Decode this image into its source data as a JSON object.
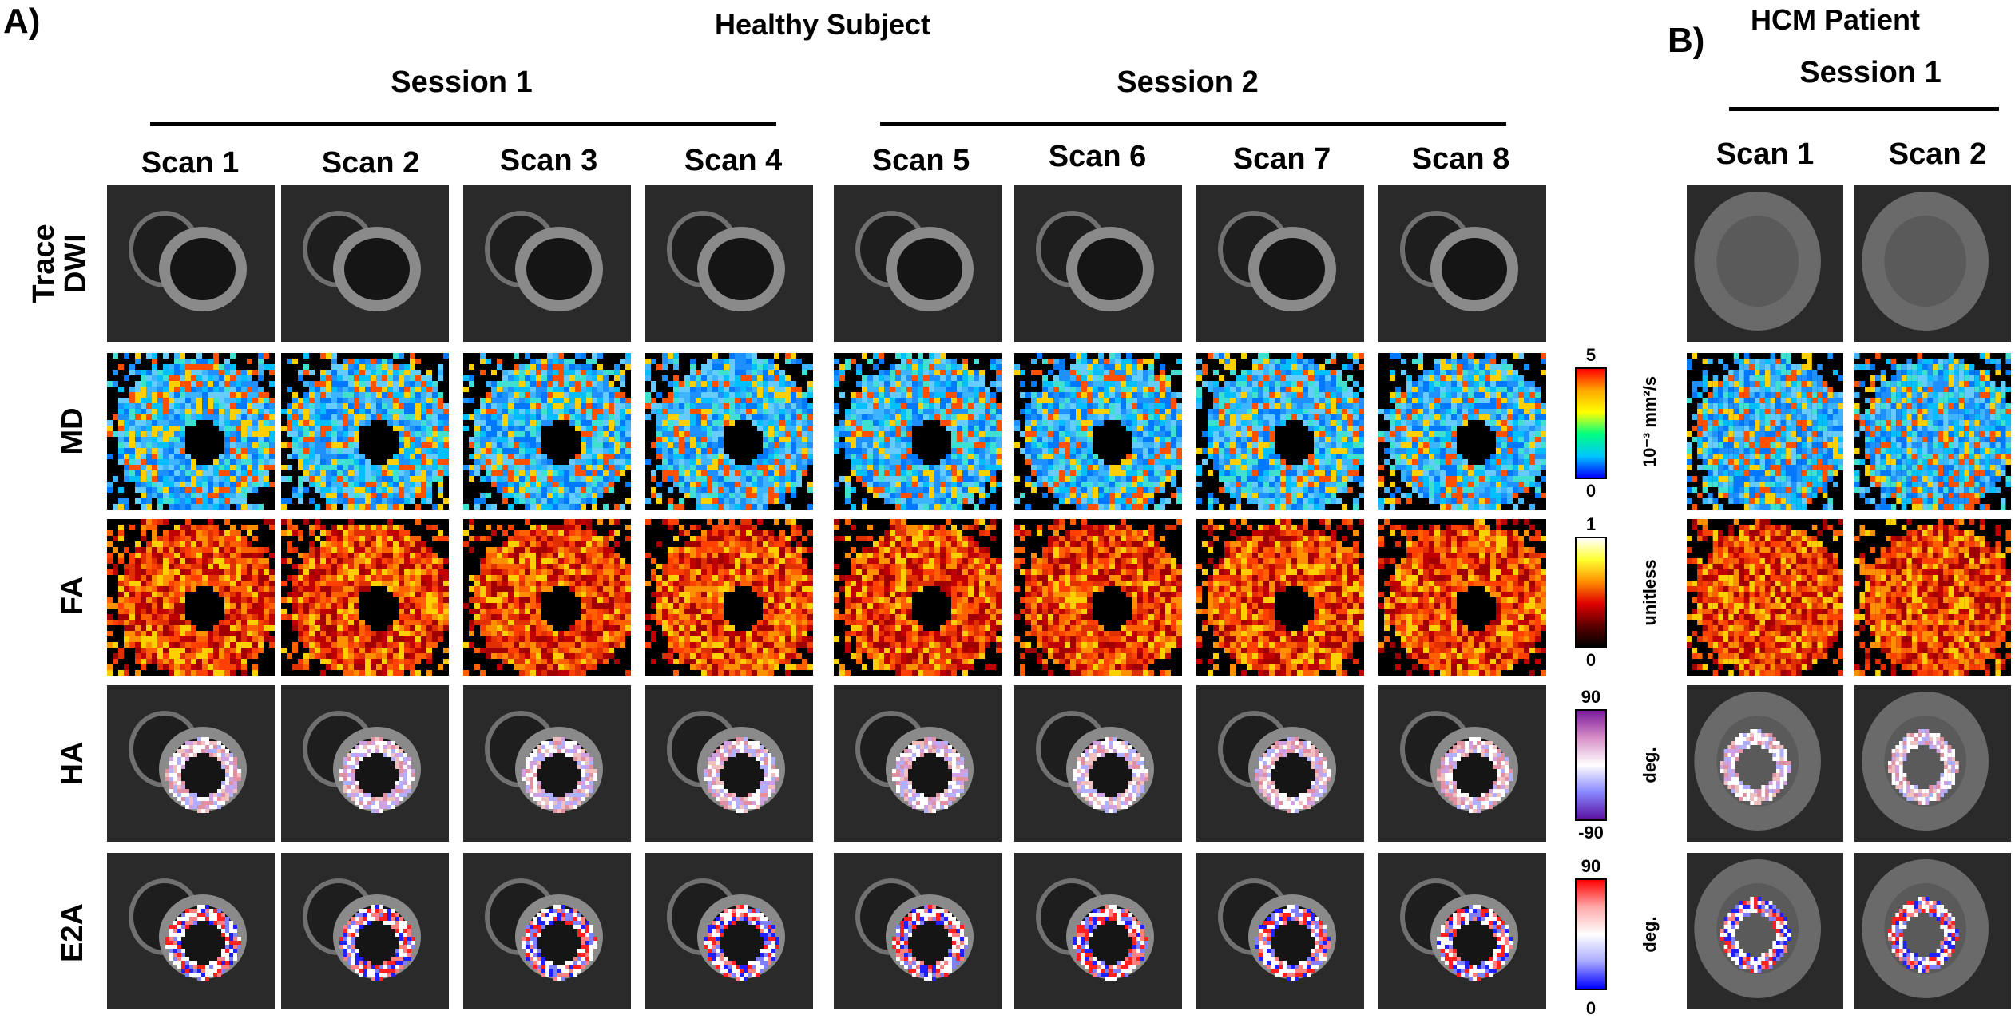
{
  "panel_a": {
    "letter": "A)",
    "title": "Healthy Subject",
    "sessions": [
      "Session 1",
      "Session 2"
    ],
    "scans": [
      "Scan 1",
      "Scan 2",
      "Scan 3",
      "Scan 4",
      "Scan 5",
      "Scan 6",
      "Scan 7",
      "Scan 8"
    ]
  },
  "panel_b": {
    "letter": "B)",
    "title": "HCM Patient",
    "session": "Session 1",
    "scans": [
      "Scan 1",
      "Scan 2"
    ]
  },
  "rows": [
    {
      "line1": "Trace",
      "line2": "DWI",
      "map": "dwi"
    },
    {
      "line1": "MD",
      "line2": "",
      "map": "md"
    },
    {
      "line1": "FA",
      "line2": "",
      "map": "fa"
    },
    {
      "line1": "HA",
      "line2": "",
      "map": "ha"
    },
    {
      "line1": "E2A",
      "line2": "",
      "map": "e2a"
    }
  ],
  "colorbars": {
    "md": {
      "max": "5",
      "min": "0",
      "unit": "10⁻³ mm²/s",
      "colors": [
        "#ff0000",
        "#ffaa00",
        "#ffff00",
        "#00ff80",
        "#00c8ff",
        "#0000ff"
      ]
    },
    "fa": {
      "max": "1",
      "min": "0",
      "unit": "unitless",
      "colors": [
        "#ffffff",
        "#ffff30",
        "#ff9000",
        "#e00000",
        "#600000",
        "#000000"
      ]
    },
    "ha": {
      "max": "90",
      "min": "-90",
      "unit": "deg.",
      "colors": [
        "#7a1a9a",
        "#d890c8",
        "#ffffff",
        "#8888ff",
        "#5a10a0"
      ]
    },
    "e2a": {
      "max": "90",
      "min": "0",
      "unit": "deg.",
      "colors": [
        "#ff0000",
        "#ffaaaa",
        "#ffffff",
        "#aaaaff",
        "#0000ff"
      ]
    }
  }
}
